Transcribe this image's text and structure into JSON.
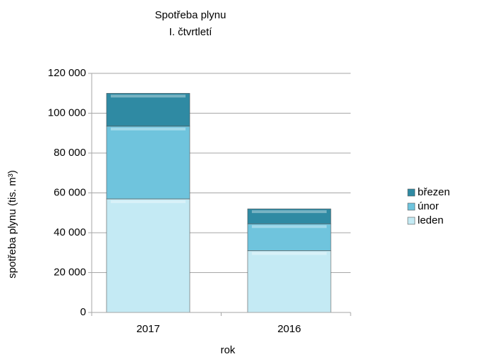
{
  "chart_data": {
    "type": "stacked_bar",
    "title": "Spotřeba plynu",
    "subtitle": "I. čtvrtletí",
    "x_label": "rok",
    "y_label": "spotřeba plynu (tis. m³)",
    "categories": [
      "2017",
      "2016"
    ],
    "series": [
      {
        "name": "leden",
        "color": "#c4eaf4",
        "values": [
          57000,
          31000
        ]
      },
      {
        "name": "únor",
        "color": "#6fc4dd",
        "values": [
          36500,
          13500
        ]
      },
      {
        "name": "březen",
        "color": "#2f8aa3",
        "values": [
          16500,
          7500
        ]
      }
    ],
    "ylim": [
      0,
      120000
    ],
    "yticks": [
      0,
      {
        "value": 20000,
        "label": "20 000"
      },
      {
        "value": 40000,
        "label": "40 000"
      },
      {
        "value": 60000,
        "label": "60 000"
      },
      {
        "value": 80000,
        "label": "80 000"
      },
      {
        "value": 100000,
        "label": "100 000"
      },
      {
        "value": 120000,
        "label": "120 000"
      }
    ],
    "grid": true,
    "legend": "right"
  }
}
